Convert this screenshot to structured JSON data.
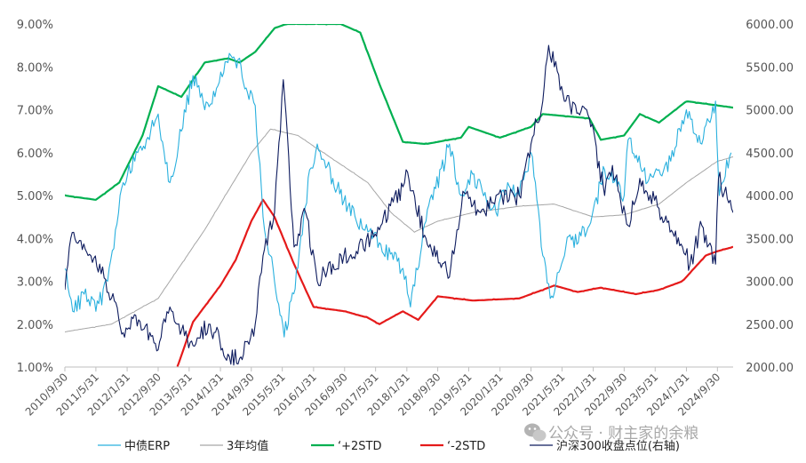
{
  "chart_data": {
    "type": "line",
    "title": "",
    "xlabel": "",
    "ylabel_left": "",
    "ylabel_right": "",
    "x_range": [
      "2010-09-30",
      "2025-01-31"
    ],
    "y_left": {
      "min": 1.0,
      "max": 9.0,
      "ticks": [
        "1.00%",
        "2.00%",
        "3.00%",
        "4.00%",
        "5.00%",
        "6.00%",
        "7.00%",
        "8.00%",
        "9.00%"
      ]
    },
    "y_right": {
      "min": 2000,
      "max": 6000,
      "ticks": [
        "2000.00",
        "2500.00",
        "3000.00",
        "3500.00",
        "4000.00",
        "4500.00",
        "5000.00",
        "5500.00",
        "6000.00"
      ]
    },
    "x_ticks": [
      "2010/9/30",
      "2011/5/31",
      "2012/1/31",
      "2012/9/30",
      "2013/5/31",
      "2014/1/31",
      "2014/9/30",
      "2015/5/31",
      "2016/1/31",
      "2016/9/30",
      "2017/5/31",
      "2018/1/31",
      "2018/9/30",
      "2019/5/31",
      "2020/1/31",
      "2020/9/30",
      "2021/5/31",
      "2022/1/31",
      "2022/9/30",
      "2023/5/31",
      "2024/1/31",
      "2024/9/30"
    ],
    "grid": false,
    "legend_position": "bottom",
    "series": [
      {
        "name": "中债ERP",
        "axis": "left",
        "color": "#29b0de",
        "points": [
          [
            "2010-09-30",
            3.3
          ],
          [
            "2010-11-30",
            2.3
          ],
          [
            "2011-02-28",
            2.7
          ],
          [
            "2011-05-31",
            2.3
          ],
          [
            "2011-08-31",
            3.0
          ],
          [
            "2011-10-31",
            4.2
          ],
          [
            "2011-12-31",
            5.3
          ],
          [
            "2012-03-31",
            5.8
          ],
          [
            "2012-06-30",
            6.3
          ],
          [
            "2012-09-30",
            6.9
          ],
          [
            "2012-12-31",
            5.3
          ],
          [
            "2013-03-31",
            6.5
          ],
          [
            "2013-06-30",
            7.8
          ],
          [
            "2013-09-30",
            7.0
          ],
          [
            "2013-12-31",
            7.5
          ],
          [
            "2014-03-31",
            8.1
          ],
          [
            "2014-06-30",
            8.2
          ],
          [
            "2014-08-31",
            7.4
          ],
          [
            "2014-10-31",
            7.1
          ],
          [
            "2014-12-31",
            4.5
          ],
          [
            "2015-03-31",
            3.0
          ],
          [
            "2015-06-15",
            1.7
          ],
          [
            "2015-09-30",
            3.3
          ],
          [
            "2015-12-31",
            5.6
          ],
          [
            "2016-02-29",
            6.2
          ],
          [
            "2016-06-30",
            5.4
          ],
          [
            "2016-12-31",
            4.4
          ],
          [
            "2017-06-30",
            3.9
          ],
          [
            "2017-12-31",
            3.3
          ],
          [
            "2018-02-28",
            2.4
          ],
          [
            "2018-06-30",
            4.4
          ],
          [
            "2018-12-31",
            6.2
          ],
          [
            "2019-03-31",
            5.0
          ],
          [
            "2019-06-30",
            5.5
          ],
          [
            "2019-12-31",
            4.6
          ],
          [
            "2020-03-31",
            5.3
          ],
          [
            "2020-06-30",
            5.0
          ],
          [
            "2020-09-30",
            6.0
          ],
          [
            "2020-12-31",
            3.6
          ],
          [
            "2021-02-28",
            2.6
          ],
          [
            "2021-06-30",
            3.8
          ],
          [
            "2021-12-31",
            4.3
          ],
          [
            "2022-04-30",
            5.6
          ],
          [
            "2022-09-30",
            5.0
          ],
          [
            "2022-10-31",
            6.3
          ],
          [
            "2023-03-31",
            5.3
          ],
          [
            "2023-09-30",
            5.8
          ],
          [
            "2024-01-31",
            7.0
          ],
          [
            "2024-05-31",
            6.2
          ],
          [
            "2024-09-15",
            7.2
          ],
          [
            "2024-10-15",
            5.0
          ],
          [
            "2025-01-15",
            6.0
          ]
        ]
      },
      {
        "name": "3年均值",
        "axis": "left",
        "color": "#a6a6a6",
        "points": [
          [
            "2010-09-30",
            1.82
          ],
          [
            "2011-09-30",
            2.0
          ],
          [
            "2012-09-30",
            2.6
          ],
          [
            "2013-03-31",
            3.4
          ],
          [
            "2013-09-30",
            4.2
          ],
          [
            "2014-03-31",
            5.1
          ],
          [
            "2014-09-30",
            6.0
          ],
          [
            "2015-02-28",
            6.55
          ],
          [
            "2015-09-30",
            6.4
          ],
          [
            "2016-06-30",
            5.85
          ],
          [
            "2017-03-31",
            5.3
          ],
          [
            "2017-09-30",
            4.6
          ],
          [
            "2018-03-31",
            4.15
          ],
          [
            "2018-09-30",
            4.4
          ],
          [
            "2019-06-30",
            4.6
          ],
          [
            "2020-06-30",
            4.75
          ],
          [
            "2021-03-31",
            4.8
          ],
          [
            "2022-01-31",
            4.5
          ],
          [
            "2022-09-30",
            4.55
          ],
          [
            "2023-06-30",
            4.8
          ],
          [
            "2024-01-31",
            5.3
          ],
          [
            "2024-09-30",
            5.8
          ],
          [
            "2025-01-31",
            5.9
          ]
        ]
      },
      {
        "name": "‘+2STD",
        "axis": "left",
        "color": "#00b050",
        "points": [
          [
            "2010-09-30",
            5.0
          ],
          [
            "2011-05-31",
            4.9
          ],
          [
            "2011-11-30",
            5.3
          ],
          [
            "2012-05-31",
            6.4
          ],
          [
            "2012-09-30",
            7.55
          ],
          [
            "2013-03-31",
            7.3
          ],
          [
            "2013-09-30",
            8.1
          ],
          [
            "2014-03-31",
            8.2
          ],
          [
            "2014-06-30",
            8.1
          ],
          [
            "2014-10-31",
            8.35
          ],
          [
            "2015-03-31",
            8.9
          ],
          [
            "2015-06-30",
            9.0
          ],
          [
            "2016-08-31",
            9.0
          ],
          [
            "2017-01-31",
            8.8
          ],
          [
            "2017-06-30",
            7.6
          ],
          [
            "2017-12-31",
            6.25
          ],
          [
            "2018-06-30",
            6.2
          ],
          [
            "2019-03-31",
            6.35
          ],
          [
            "2019-05-31",
            6.6
          ],
          [
            "2020-01-31",
            6.35
          ],
          [
            "2020-09-30",
            6.6
          ],
          [
            "2020-12-31",
            6.9
          ],
          [
            "2021-06-30",
            6.85
          ],
          [
            "2021-12-31",
            6.8
          ],
          [
            "2022-03-31",
            6.3
          ],
          [
            "2022-09-30",
            6.4
          ],
          [
            "2023-01-31",
            6.9
          ],
          [
            "2023-06-30",
            6.7
          ],
          [
            "2024-01-31",
            7.2
          ],
          [
            "2024-09-30",
            7.1
          ],
          [
            "2025-01-31",
            7.05
          ]
        ]
      },
      {
        "name": "‘-2STD",
        "axis": "left",
        "color": "#e51a1a",
        "points": [
          [
            "2013-02-28",
            1.0
          ],
          [
            "2013-06-30",
            2.05
          ],
          [
            "2014-01-31",
            2.9
          ],
          [
            "2014-05-31",
            3.5
          ],
          [
            "2014-09-30",
            4.4
          ],
          [
            "2014-12-31",
            4.9
          ],
          [
            "2015-03-31",
            4.5
          ],
          [
            "2015-08-31",
            3.4
          ],
          [
            "2016-01-31",
            2.4
          ],
          [
            "2016-09-30",
            2.3
          ],
          [
            "2017-03-31",
            2.15
          ],
          [
            "2017-06-30",
            2.0
          ],
          [
            "2017-12-31",
            2.3
          ],
          [
            "2018-04-30",
            2.1
          ],
          [
            "2018-09-30",
            2.65
          ],
          [
            "2019-06-30",
            2.55
          ],
          [
            "2020-06-30",
            2.6
          ],
          [
            "2020-12-31",
            2.8
          ],
          [
            "2021-03-31",
            2.9
          ],
          [
            "2021-09-30",
            2.75
          ],
          [
            "2022-03-31",
            2.85
          ],
          [
            "2022-12-31",
            2.7
          ],
          [
            "2023-06-30",
            2.8
          ],
          [
            "2023-12-31",
            3.0
          ],
          [
            "2024-06-30",
            3.6
          ],
          [
            "2024-09-30",
            3.7
          ],
          [
            "2025-01-31",
            3.8
          ]
        ]
      },
      {
        "name": "沪深300收盘点位(右轴)",
        "axis": "right",
        "color": "#0d1b5e",
        "points": [
          [
            "2010-09-30",
            2900
          ],
          [
            "2010-11-15",
            3500
          ],
          [
            "2011-03-31",
            3300
          ],
          [
            "2011-06-30",
            3200
          ],
          [
            "2011-09-30",
            2800
          ],
          [
            "2011-12-31",
            2400
          ],
          [
            "2012-04-30",
            2550
          ],
          [
            "2012-09-30",
            2200
          ],
          [
            "2012-12-31",
            2700
          ],
          [
            "2013-02-28",
            2500
          ],
          [
            "2013-06-30",
            2250
          ],
          [
            "2013-10-31",
            2500
          ],
          [
            "2014-03-31",
            2150
          ],
          [
            "2014-06-30",
            2100
          ],
          [
            "2014-08-31",
            2300
          ],
          [
            "2014-10-31",
            2500
          ],
          [
            "2014-12-31",
            3300
          ],
          [
            "2015-03-31",
            3800
          ],
          [
            "2015-06-08",
            5350
          ],
          [
            "2015-08-31",
            3400
          ],
          [
            "2015-11-30",
            3800
          ],
          [
            "2016-02-29",
            3000
          ],
          [
            "2016-06-30",
            3200
          ],
          [
            "2016-12-31",
            3350
          ],
          [
            "2017-06-30",
            3600
          ],
          [
            "2017-12-31",
            4100
          ],
          [
            "2018-01-25",
            4300
          ],
          [
            "2018-06-30",
            3500
          ],
          [
            "2018-12-31",
            3050
          ],
          [
            "2019-04-15",
            4050
          ],
          [
            "2019-08-31",
            3800
          ],
          [
            "2019-12-31",
            4000
          ],
          [
            "2020-06-30",
            4000
          ],
          [
            "2020-09-30",
            4600
          ],
          [
            "2020-12-31",
            5100
          ],
          [
            "2021-02-15",
            5750
          ],
          [
            "2021-06-30",
            5100
          ],
          [
            "2021-12-31",
            4900
          ],
          [
            "2022-04-30",
            4000
          ],
          [
            "2022-06-30",
            4350
          ],
          [
            "2022-10-31",
            3650
          ],
          [
            "2023-01-31",
            4200
          ],
          [
            "2023-06-30",
            3850
          ],
          [
            "2023-12-31",
            3400
          ],
          [
            "2024-02-28",
            3200
          ],
          [
            "2024-05-31",
            3650
          ],
          [
            "2024-09-15",
            3200
          ],
          [
            "2024-10-08",
            4200
          ],
          [
            "2025-01-31",
            3800
          ]
        ]
      }
    ]
  },
  "watermark": {
    "text": "公众号 · 财主家的余粮",
    "icon": "wechat-icon"
  }
}
